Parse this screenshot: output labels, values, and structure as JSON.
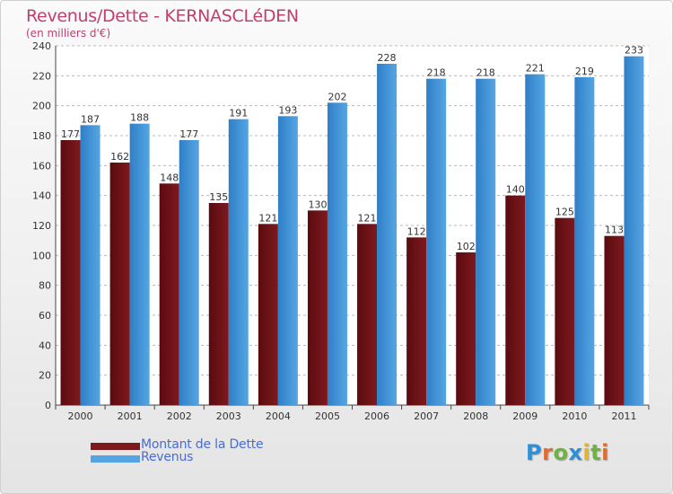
{
  "title": "Revenus/Dette - KERNASCLéDEN",
  "subtitle": "(en milliers d'€)",
  "colors": {
    "debt": "#7d1a1e",
    "revenue": "#56a5e2",
    "title": "#bf3f6e",
    "legend_text": "#4a6cd0"
  },
  "legend": {
    "debt_label": "Montant de la Dette",
    "revenue_label": "Revenus",
    "position": "bottom-left"
  },
  "logo": {
    "text": "Proxiti",
    "letter_colors": [
      "#2f8fd6",
      "#e36b2c",
      "#6db33f",
      "#2f8fd6",
      "#e3b42c",
      "#6db33f",
      "#e36b2c"
    ]
  },
  "chart_data": {
    "type": "bar",
    "categories": [
      "2000",
      "2001",
      "2002",
      "2003",
      "2004",
      "2005",
      "2006",
      "2007",
      "2008",
      "2009",
      "2010",
      "2011"
    ],
    "series": [
      {
        "name": "Montant de la Dette",
        "values": [
          177,
          162,
          148,
          135,
          121,
          130,
          121,
          112,
          102,
          140,
          125,
          113
        ]
      },
      {
        "name": "Revenus",
        "values": [
          187,
          188,
          177,
          191,
          193,
          202,
          228,
          218,
          218,
          221,
          219,
          233
        ]
      }
    ],
    "ylim": [
      0,
      240
    ],
    "yticks": [
      0,
      20,
      40,
      60,
      80,
      100,
      120,
      140,
      160,
      180,
      200,
      220,
      240
    ],
    "grid": true
  }
}
